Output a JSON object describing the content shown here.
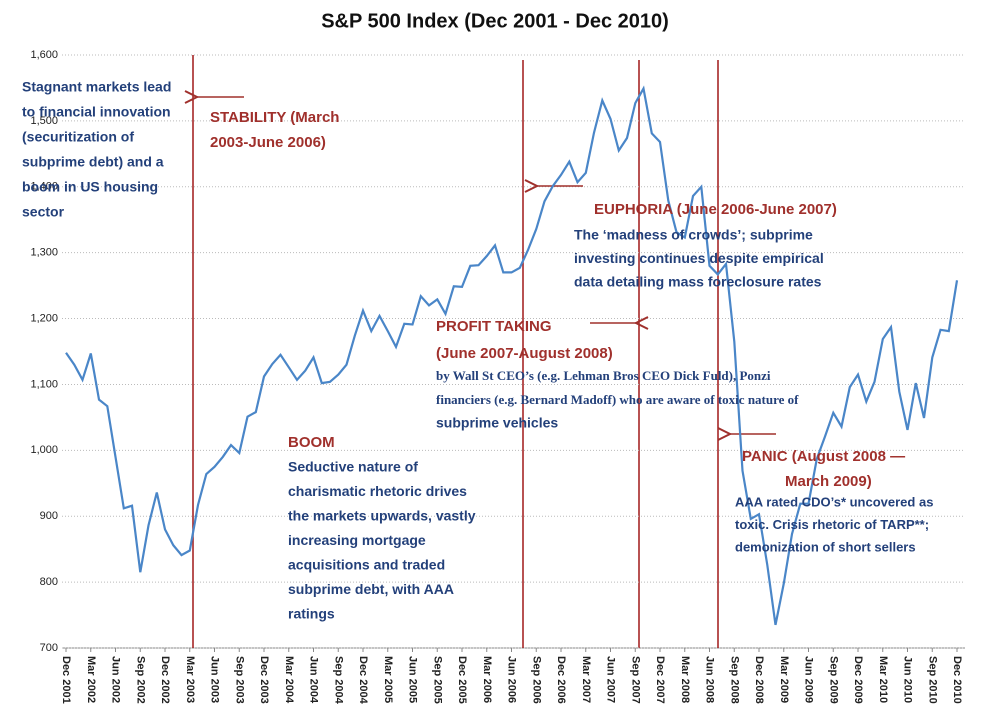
{
  "chart_data": {
    "type": "line",
    "title": "S&P 500 Index (Dec 2001 - Dec 2010)",
    "categories": [
      "Dec 2001",
      null,
      null,
      "Mar 2002",
      null,
      null,
      "Jun 2002",
      null,
      null,
      "Sep 2002",
      null,
      null,
      "Dec 2002",
      null,
      null,
      "Mar 2003",
      null,
      null,
      "Jun 2003",
      null,
      null,
      "Sep 2003",
      null,
      null,
      "Dec 2003",
      null,
      null,
      "Mar 2004",
      null,
      null,
      "Jun 2004",
      null,
      null,
      "Sep 2004",
      null,
      null,
      "Dec 2004",
      null,
      null,
      "Mar 2005",
      null,
      null,
      "Jun 2005",
      null,
      null,
      "Sep 2005",
      null,
      null,
      "Dec 2005",
      null,
      null,
      "Mar 2006",
      null,
      null,
      "Jun 2006",
      null,
      null,
      "Sep 2006",
      null,
      null,
      "Dec 2006",
      null,
      null,
      "Mar 2007",
      null,
      null,
      "Jun 2007",
      null,
      null,
      "Sep 2007",
      null,
      null,
      "Dec 2007",
      null,
      null,
      "Mar 2008",
      null,
      null,
      "Jun 2008",
      null,
      null,
      "Sep 2008",
      null,
      null,
      "Dec 2008",
      null,
      null,
      "Mar 2009",
      null,
      null,
      "Jun 2009",
      null,
      null,
      "Sep 2009",
      null,
      null,
      "Dec 2009",
      null,
      null,
      "Mar 2010",
      null,
      null,
      "Jun 2010",
      null,
      null,
      "Sep 2010",
      null,
      null,
      "Dec 2010"
    ],
    "series": [
      {
        "name": "S&P 500",
        "color": "#4a86c8",
        "values": [
          1148,
          1130,
          1107,
          1147,
          1077,
          1067,
          990,
          912,
          916,
          815,
          886,
          936,
          880,
          856,
          841,
          848,
          917,
          964,
          975,
          990,
          1008,
          996,
          1051,
          1058,
          1112,
          1131,
          1145,
          1126,
          1107,
          1121,
          1141,
          1102,
          1104,
          1115,
          1130,
          1174,
          1212,
          1181,
          1204,
          1181,
          1157,
          1192,
          1191,
          1234,
          1220,
          1229,
          1207,
          1249,
          1248,
          1280,
          1281,
          1295,
          1311,
          1270,
          1270,
          1277,
          1304,
          1336,
          1378,
          1401,
          1418,
          1438,
          1407,
          1421,
          1482,
          1531,
          1503,
          1455,
          1474,
          1527,
          1549,
          1481,
          1468,
          1379,
          1331,
          1323,
          1386,
          1400,
          1280,
          1267,
          1283,
          1165,
          969,
          896,
          903,
          826,
          735,
          798,
          873,
          919,
          919,
          987,
          1021,
          1057,
          1036,
          1096,
          1115,
          1074,
          1104,
          1169,
          1187,
          1089,
          1031,
          1102,
          1049,
          1141,
          1183,
          1181,
          1258
        ]
      }
    ],
    "ylim": [
      700,
      1600
    ],
    "yticks": [
      700,
      800,
      900,
      {
        "value": 1000,
        "label": "1,000"
      },
      {
        "value": 1100,
        "label": "1,100"
      },
      {
        "value": 1200,
        "label": "1,200"
      },
      {
        "value": 1300,
        "label": "1,300"
      },
      {
        "value": 1400,
        "label": "1,400"
      },
      {
        "value": 1500,
        "label": "1,500"
      },
      {
        "value": 1600,
        "label": "1,600"
      }
    ],
    "grid": true,
    "annotations": [
      {
        "style": "nv",
        "lines": [
          "Stagnant markets lead",
          "to financial innovation",
          "(securitization of",
          "subprime debt) and a",
          "boom in US housing",
          "sector"
        ]
      },
      {
        "style": "rd",
        "lines": [
          "STABILITY (March",
          "2003-June 2006)"
        ]
      },
      {
        "style": "rd",
        "lines": [
          "EUPHORIA (June 2006-June 2007)"
        ]
      },
      {
        "style": "nv",
        "lines": [
          "The ‘madness of crowds’; subprime",
          "investing continues despite empirical",
          "data detailing mass foreclosure rates"
        ]
      },
      {
        "style": "rd",
        "lines": [
          "PROFIT TAKING",
          "(June 2007-August 2008)"
        ]
      },
      {
        "style": "sf",
        "lines": [
          "by Wall St CEO’s (e.g. Lehman Bros CEO Dick Fuld), Ponzi",
          "financiers (e.g. Bernard Madoff) who are aware of toxic nature of"
        ]
      },
      {
        "style": "nv",
        "lines": [
          "subprime vehicles"
        ]
      },
      {
        "style": "rd",
        "lines": [
          "BOOM"
        ]
      },
      {
        "style": "nv",
        "lines": [
          "Seductive nature of",
          "charismatic rhetoric drives",
          "the markets upwards, vastly",
          "increasing mortgage",
          "acquisitions and traded",
          "subprime debt, with AAA",
          "ratings"
        ]
      },
      {
        "style": "rd",
        "lines": [
          "PANIC (August 2008 —",
          "March 2009)"
        ]
      },
      {
        "style": "sm",
        "lines": [
          "AAA rated CDO’s* uncovered as",
          "toxic. Crisis rhetoric of TARP**;",
          "demonization of short sellers"
        ]
      }
    ]
  }
}
